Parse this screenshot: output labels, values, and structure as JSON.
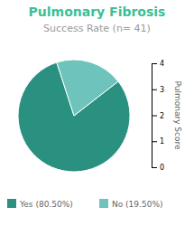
{
  "chart_data": {
    "type": "pie",
    "title": "Pulmonary Fibrosis",
    "subtitle": "Success Rate (n= 41)",
    "categories": [
      "Yes (80.50%)",
      "No (19.50%)"
    ],
    "values": [
      80.5,
      19.5
    ],
    "colors": [
      "#2a9080",
      "#6ec4bc"
    ],
    "y_label": "Pulmonary Score",
    "ylim": [
      0,
      4
    ],
    "yticks": [
      0,
      1,
      2,
      3,
      4
    ],
    "legend": "bottom"
  }
}
